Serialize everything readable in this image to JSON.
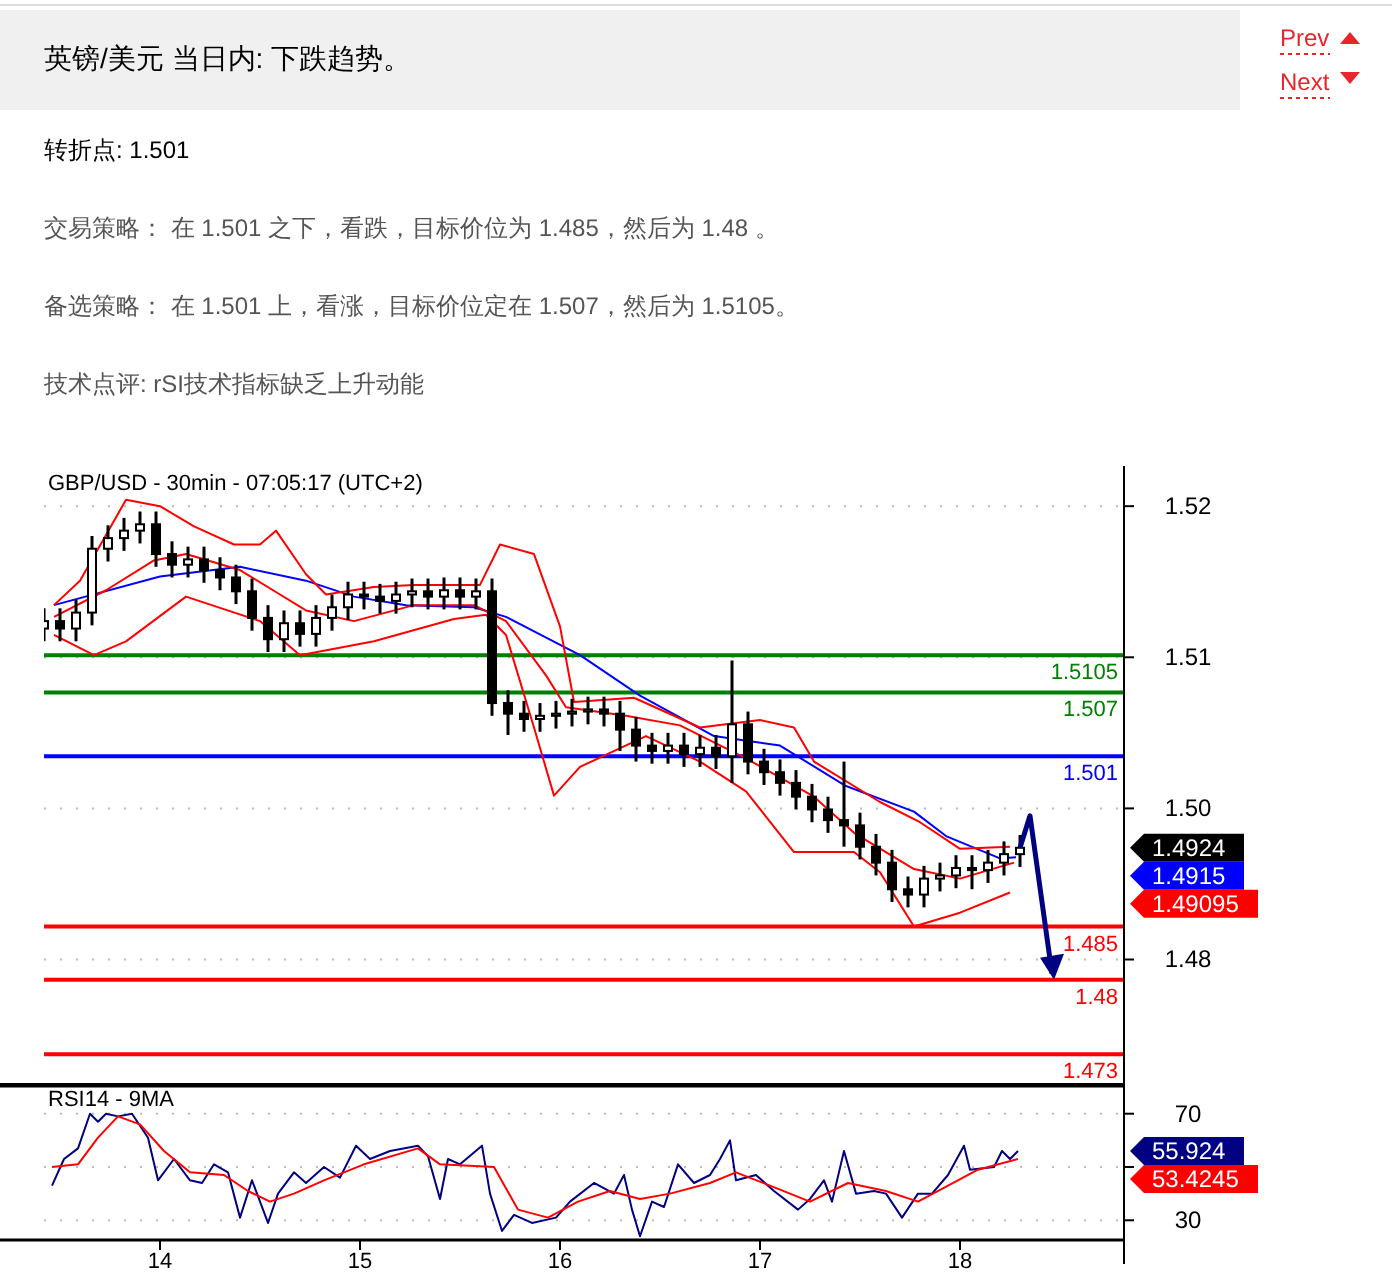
{
  "chart_data": [
    {
      "type": "other",
      "title": "英镑/美元 当日内: 下跌趋势。",
      "annotations": [
        "Prev",
        "Next",
        "转折点: 1.501",
        "交易策略： 在 1.501 之下，看跌，目标价位为 1.485，然后为 1.48 。",
        "备选策略： 在 1.501 上，看涨，目标价位定在 1.507，然后为 1.5105。",
        "技术点评: rSI技术指标缺乏上升动能"
      ]
    },
    {
      "type": "candlestick",
      "title": "GBP/USD - 30min - 07:05:17 (UTC+2)",
      "color": "#000000",
      "x": [
        13.42,
        13.5,
        13.58,
        13.66,
        13.74,
        13.82,
        13.9,
        13.98,
        14.06,
        14.14,
        14.22,
        14.3,
        14.38,
        14.46,
        14.54,
        14.62,
        14.7,
        14.78,
        14.86,
        14.94,
        15.02,
        15.1,
        15.18,
        15.26,
        15.34,
        15.42,
        15.5,
        15.58,
        15.66,
        15.74,
        15.82,
        15.9,
        15.98,
        16.06,
        16.14,
        16.22,
        16.3,
        16.38,
        16.46,
        16.54,
        16.62,
        16.7,
        16.78,
        16.86,
        16.94,
        17.02,
        17.1,
        17.18,
        17.26,
        17.34,
        17.42,
        17.5,
        17.58,
        17.66,
        17.74,
        17.82,
        17.9,
        17.98,
        18.06,
        18.14,
        18.22,
        18.3
      ],
      "ohlc": [
        [
          1.513,
          1.5149,
          1.5118,
          1.5137
        ],
        [
          1.5137,
          1.5149,
          1.5118,
          1.513
        ],
        [
          1.513,
          1.5157,
          1.5118,
          1.5145
        ],
        [
          1.5145,
          1.5217,
          1.5133,
          1.5205
        ],
        [
          1.5205,
          1.5227,
          1.5193,
          1.5215
        ],
        [
          1.5215,
          1.5234,
          1.5203,
          1.5222
        ],
        [
          1.5222,
          1.524,
          1.521,
          1.5228
        ],
        [
          1.5228,
          1.524,
          1.5188,
          1.52
        ],
        [
          1.52,
          1.5212,
          1.5178,
          1.519
        ],
        [
          1.519,
          1.5207,
          1.5178,
          1.5195
        ],
        [
          1.5195,
          1.5207,
          1.5173,
          1.5185
        ],
        [
          1.5185,
          1.5197,
          1.5166,
          1.5178
        ],
        [
          1.5178,
          1.519,
          1.5153,
          1.5165
        ],
        [
          1.5165,
          1.5177,
          1.5128,
          1.514
        ],
        [
          1.514,
          1.5152,
          1.5108,
          1.512
        ],
        [
          1.512,
          1.5147,
          1.5108,
          1.5135
        ],
        [
          1.5135,
          1.5147,
          1.5113,
          1.5125
        ],
        [
          1.5125,
          1.5152,
          1.5113,
          1.514
        ],
        [
          1.514,
          1.5162,
          1.5128,
          1.515
        ],
        [
          1.515,
          1.5174,
          1.5138,
          1.5162
        ],
        [
          1.5162,
          1.5174,
          1.5148,
          1.516
        ],
        [
          1.516,
          1.5172,
          1.5144,
          1.5156
        ],
        [
          1.5156,
          1.5174,
          1.5144,
          1.5162
        ],
        [
          1.5162,
          1.5177,
          1.515,
          1.5165
        ],
        [
          1.5165,
          1.5177,
          1.5148,
          1.516
        ],
        [
          1.516,
          1.5178,
          1.5148,
          1.5166
        ],
        [
          1.5166,
          1.5178,
          1.5148,
          1.516
        ],
        [
          1.516,
          1.5177,
          1.5148,
          1.5165
        ],
        [
          1.5165,
          1.5177,
          1.5048,
          1.506
        ],
        [
          1.506,
          1.5072,
          1.503,
          1.505
        ],
        [
          1.505,
          1.5062,
          1.5033,
          1.5045
        ],
        [
          1.5045,
          1.506,
          1.5033,
          1.5048
        ],
        [
          1.5048,
          1.5062,
          1.5036,
          1.505
        ],
        [
          1.505,
          1.5064,
          1.5038,
          1.5052
        ],
        [
          1.5052,
          1.5066,
          1.504,
          1.5054
        ],
        [
          1.5054,
          1.5066,
          1.5038,
          1.505
        ],
        [
          1.505,
          1.5062,
          1.5015,
          1.5035
        ],
        [
          1.5035,
          1.5047,
          1.5005,
          1.502
        ],
        [
          1.502,
          1.5032,
          1.5003,
          1.5015
        ],
        [
          1.5015,
          1.5032,
          1.5003,
          1.502
        ],
        [
          1.502,
          1.5032,
          1.5,
          1.5012
        ],
        [
          1.5012,
          1.503,
          1.5,
          1.5018
        ],
        [
          1.5018,
          1.503,
          1.4998,
          1.501
        ],
        [
          1.501,
          1.51,
          1.4985,
          1.504
        ],
        [
          1.504,
          1.5052,
          1.4993,
          1.5005
        ],
        [
          1.5005,
          1.5017,
          1.4983,
          1.4995
        ],
        [
          1.4995,
          1.5007,
          1.4973,
          1.4985
        ],
        [
          1.4985,
          1.4997,
          1.496,
          1.4972
        ],
        [
          1.4972,
          1.4984,
          1.4948,
          1.496
        ],
        [
          1.496,
          1.4972,
          1.4938,
          1.495
        ],
        [
          1.495,
          1.5005,
          1.4925,
          1.4945
        ],
        [
          1.4945,
          1.4957,
          1.4913,
          1.4925
        ],
        [
          1.4925,
          1.4937,
          1.4898,
          1.491
        ],
        [
          1.491,
          1.4922,
          1.4873,
          1.4885
        ],
        [
          1.4885,
          1.4897,
          1.4868,
          1.488
        ],
        [
          1.488,
          1.4907,
          1.4868,
          1.4895
        ],
        [
          1.4895,
          1.491,
          1.4883,
          1.4898
        ],
        [
          1.4898,
          1.4917,
          1.4886,
          1.4905
        ],
        [
          1.4905,
          1.4917,
          1.4885,
          1.4903
        ],
        [
          1.4903,
          1.4922,
          1.4891,
          1.491
        ],
        [
          1.491,
          1.493,
          1.4898,
          1.4918
        ],
        [
          1.4918,
          1.4936,
          1.4906,
          1.4924
        ]
      ],
      "series": [
        {
          "type": "line",
          "color": "#0000ff",
          "x": [
            13.47,
            14.0,
            14.4,
            14.73,
            14.97,
            15.23,
            15.57,
            15.73,
            16.1,
            16.4,
            16.77,
            17.1,
            17.43,
            17.77,
            17.93,
            18.2,
            18.28
          ],
          "values": [
            1.5152,
            1.5179,
            1.5188,
            1.5175,
            1.516,
            1.5152,
            1.515,
            1.5141,
            1.5105,
            1.5067,
            1.5029,
            1.502,
            1.4982,
            1.4958,
            1.4935,
            1.4914,
            1.4915
          ]
        },
        {
          "type": "line",
          "color": "#ff0000",
          "x": [
            13.47,
            13.73,
            13.97,
            14.13,
            14.4,
            14.6,
            14.73,
            14.97,
            15.27,
            15.57,
            15.73,
            15.93,
            16.03,
            16.33,
            16.6,
            16.93,
            17.27,
            17.47,
            17.77,
            18.0,
            18.27
          ],
          "values": [
            1.5141,
            1.5166,
            1.5194,
            1.52,
            1.5185,
            1.5162,
            1.5147,
            1.5137,
            1.5152,
            1.5152,
            1.5137,
            1.5086,
            1.5056,
            1.5048,
            1.5039,
            1.5008,
            1.4972,
            1.4938,
            1.4904,
            1.4895,
            1.491
          ]
        },
        {
          "type": "line",
          "color": "#ff0000",
          "x": [
            13.47,
            13.6,
            13.83,
            14.0,
            14.17,
            14.37,
            14.5,
            14.58,
            14.73,
            14.83,
            15.07,
            15.27,
            15.6,
            15.7,
            15.87,
            16.0,
            16.07,
            16.37,
            16.7,
            17.0,
            17.17,
            17.27,
            17.6,
            17.8,
            18.0,
            18.25
          ],
          "values": [
            1.5152,
            1.5175,
            1.5251,
            1.5245,
            1.5226,
            1.5209,
            1.5209,
            1.5222,
            1.5181,
            1.5162,
            1.5169,
            1.5171,
            1.5171,
            1.5209,
            1.52,
            1.5132,
            1.5061,
            1.5065,
            1.5037,
            1.5044,
            1.5037,
            1.5005,
            1.4967,
            1.4948,
            1.4923,
            1.4925
          ]
        },
        {
          "type": "line",
          "color": "#ff0000",
          "x": [
            13.47,
            13.67,
            13.83,
            14.13,
            14.5,
            14.7,
            15.07,
            15.47,
            15.63,
            15.73,
            15.87,
            15.97,
            16.1,
            16.43,
            16.7,
            16.93,
            17.17,
            17.47,
            17.6,
            17.77,
            18.0,
            18.25
          ],
          "values": [
            1.5124,
            1.5105,
            1.5118,
            1.516,
            1.5137,
            1.5105,
            1.5118,
            1.5139,
            1.5143,
            1.5124,
            1.5037,
            1.4973,
            1.5,
            1.5029,
            1.5005,
            1.4977,
            1.492,
            1.492,
            1.4901,
            1.485,
            1.4863,
            1.4882
          ]
        }
      ],
      "xlim": [
        13.42,
        18.82
      ],
      "ylim": [
        1.4702,
        1.5279
      ],
      "yticks": [
        {
          "value": 1.5245,
          "label": "1.52"
        },
        {
          "value": 1.5103,
          "label": "1.51"
        },
        {
          "value": 1.4961,
          "label": "1.50"
        },
        {
          "value": 1.4819,
          "label": "1.48"
        }
      ],
      "tick_labels": "y",
      "grid": "y",
      "marker": "none",
      "ref_lines": [
        {
          "axis": "y",
          "value": 1.5105,
          "label": "1.5105",
          "color": "#008000"
        },
        {
          "axis": "y",
          "value": 1.507,
          "label": "1.507",
          "color": "#008000"
        },
        {
          "axis": "y",
          "value": 1.501,
          "label": "1.501",
          "color": "#0000ff"
        },
        {
          "axis": "y",
          "value": 1.485,
          "label": "1.485",
          "color": "#ff0000"
        },
        {
          "axis": "y",
          "value": 1.48,
          "label": "1.48",
          "color": "#ff0000"
        },
        {
          "axis": "y",
          "value": 1.473,
          "label": "1.473",
          "color": "#ff0000"
        }
      ],
      "annotations": [
        "1.4924",
        "1.4915",
        "1.49095"
      ]
    },
    {
      "type": "line",
      "title": "RSI14 - 9MA",
      "marker": "none",
      "grid": "y",
      "series": [
        {
          "color": "#000080",
          "x": [
            13.46,
            13.52,
            13.59,
            13.65,
            13.69,
            13.73,
            13.79,
            13.86,
            13.94,
            13.99,
            14.07,
            14.15,
            14.21,
            14.27,
            14.34,
            14.4,
            14.46,
            14.54,
            14.59,
            14.67,
            14.73,
            14.82,
            14.9,
            14.98,
            15.05,
            15.15,
            15.29,
            15.34,
            15.4,
            15.44,
            15.5,
            15.61,
            15.65,
            15.71,
            15.77,
            15.86,
            15.98,
            16.05,
            16.17,
            16.27,
            16.32,
            16.36,
            16.4,
            16.46,
            16.52,
            16.59,
            16.67,
            16.75,
            16.8,
            16.85,
            16.88,
            16.98,
            17.07,
            17.19,
            17.25,
            17.32,
            17.36,
            17.42,
            17.48,
            17.57,
            17.63,
            17.71,
            17.79,
            17.86,
            17.94,
            18.02,
            18.05,
            18.17,
            18.21,
            18.25,
            18.29
          ],
          "values": [
            43,
            53,
            57,
            70,
            67,
            70,
            69,
            70,
            61,
            45,
            53,
            45,
            44,
            51,
            48,
            31,
            45,
            29,
            40,
            48,
            44,
            50,
            46,
            58,
            53,
            56,
            58,
            54,
            38,
            53,
            51,
            58,
            40,
            26,
            32,
            29,
            31,
            37,
            44,
            40,
            47,
            34,
            24,
            37,
            35,
            51,
            44,
            47,
            53,
            60,
            45,
            47,
            41,
            34,
            38,
            45,
            37,
            56,
            40,
            41,
            40,
            31,
            40,
            40,
            47,
            58,
            49,
            50,
            56,
            53,
            56
          ]
        },
        {
          "color": "#ff0000",
          "x": [
            13.46,
            13.59,
            13.69,
            13.79,
            13.9,
            14.02,
            14.15,
            14.32,
            14.44,
            14.55,
            14.67,
            14.82,
            15.02,
            15.29,
            15.4,
            15.67,
            15.79,
            15.94,
            16.09,
            16.25,
            16.4,
            16.55,
            16.75,
            16.88,
            17.05,
            17.25,
            17.44,
            17.63,
            17.79,
            17.94,
            18.09,
            18.29
          ],
          "values": [
            50,
            51,
            61,
            69,
            66,
            56,
            48,
            47,
            41,
            37,
            40,
            45,
            51,
            57,
            51,
            50,
            34,
            31,
            37,
            41,
            38,
            40,
            44,
            48,
            43,
            37,
            44,
            41,
            37,
            43,
            49,
            53
          ]
        }
      ],
      "xlim": [
        13.42,
        18.82
      ],
      "xticks": [
        14,
        15,
        16,
        17,
        18
      ],
      "ylim": [
        22.6,
        80.4
      ],
      "yticks": [
        30,
        {
          "value": 50,
          "label": null
        },
        70
      ],
      "annotations": [
        "55.924",
        "53.4245"
      ]
    }
  ]
}
